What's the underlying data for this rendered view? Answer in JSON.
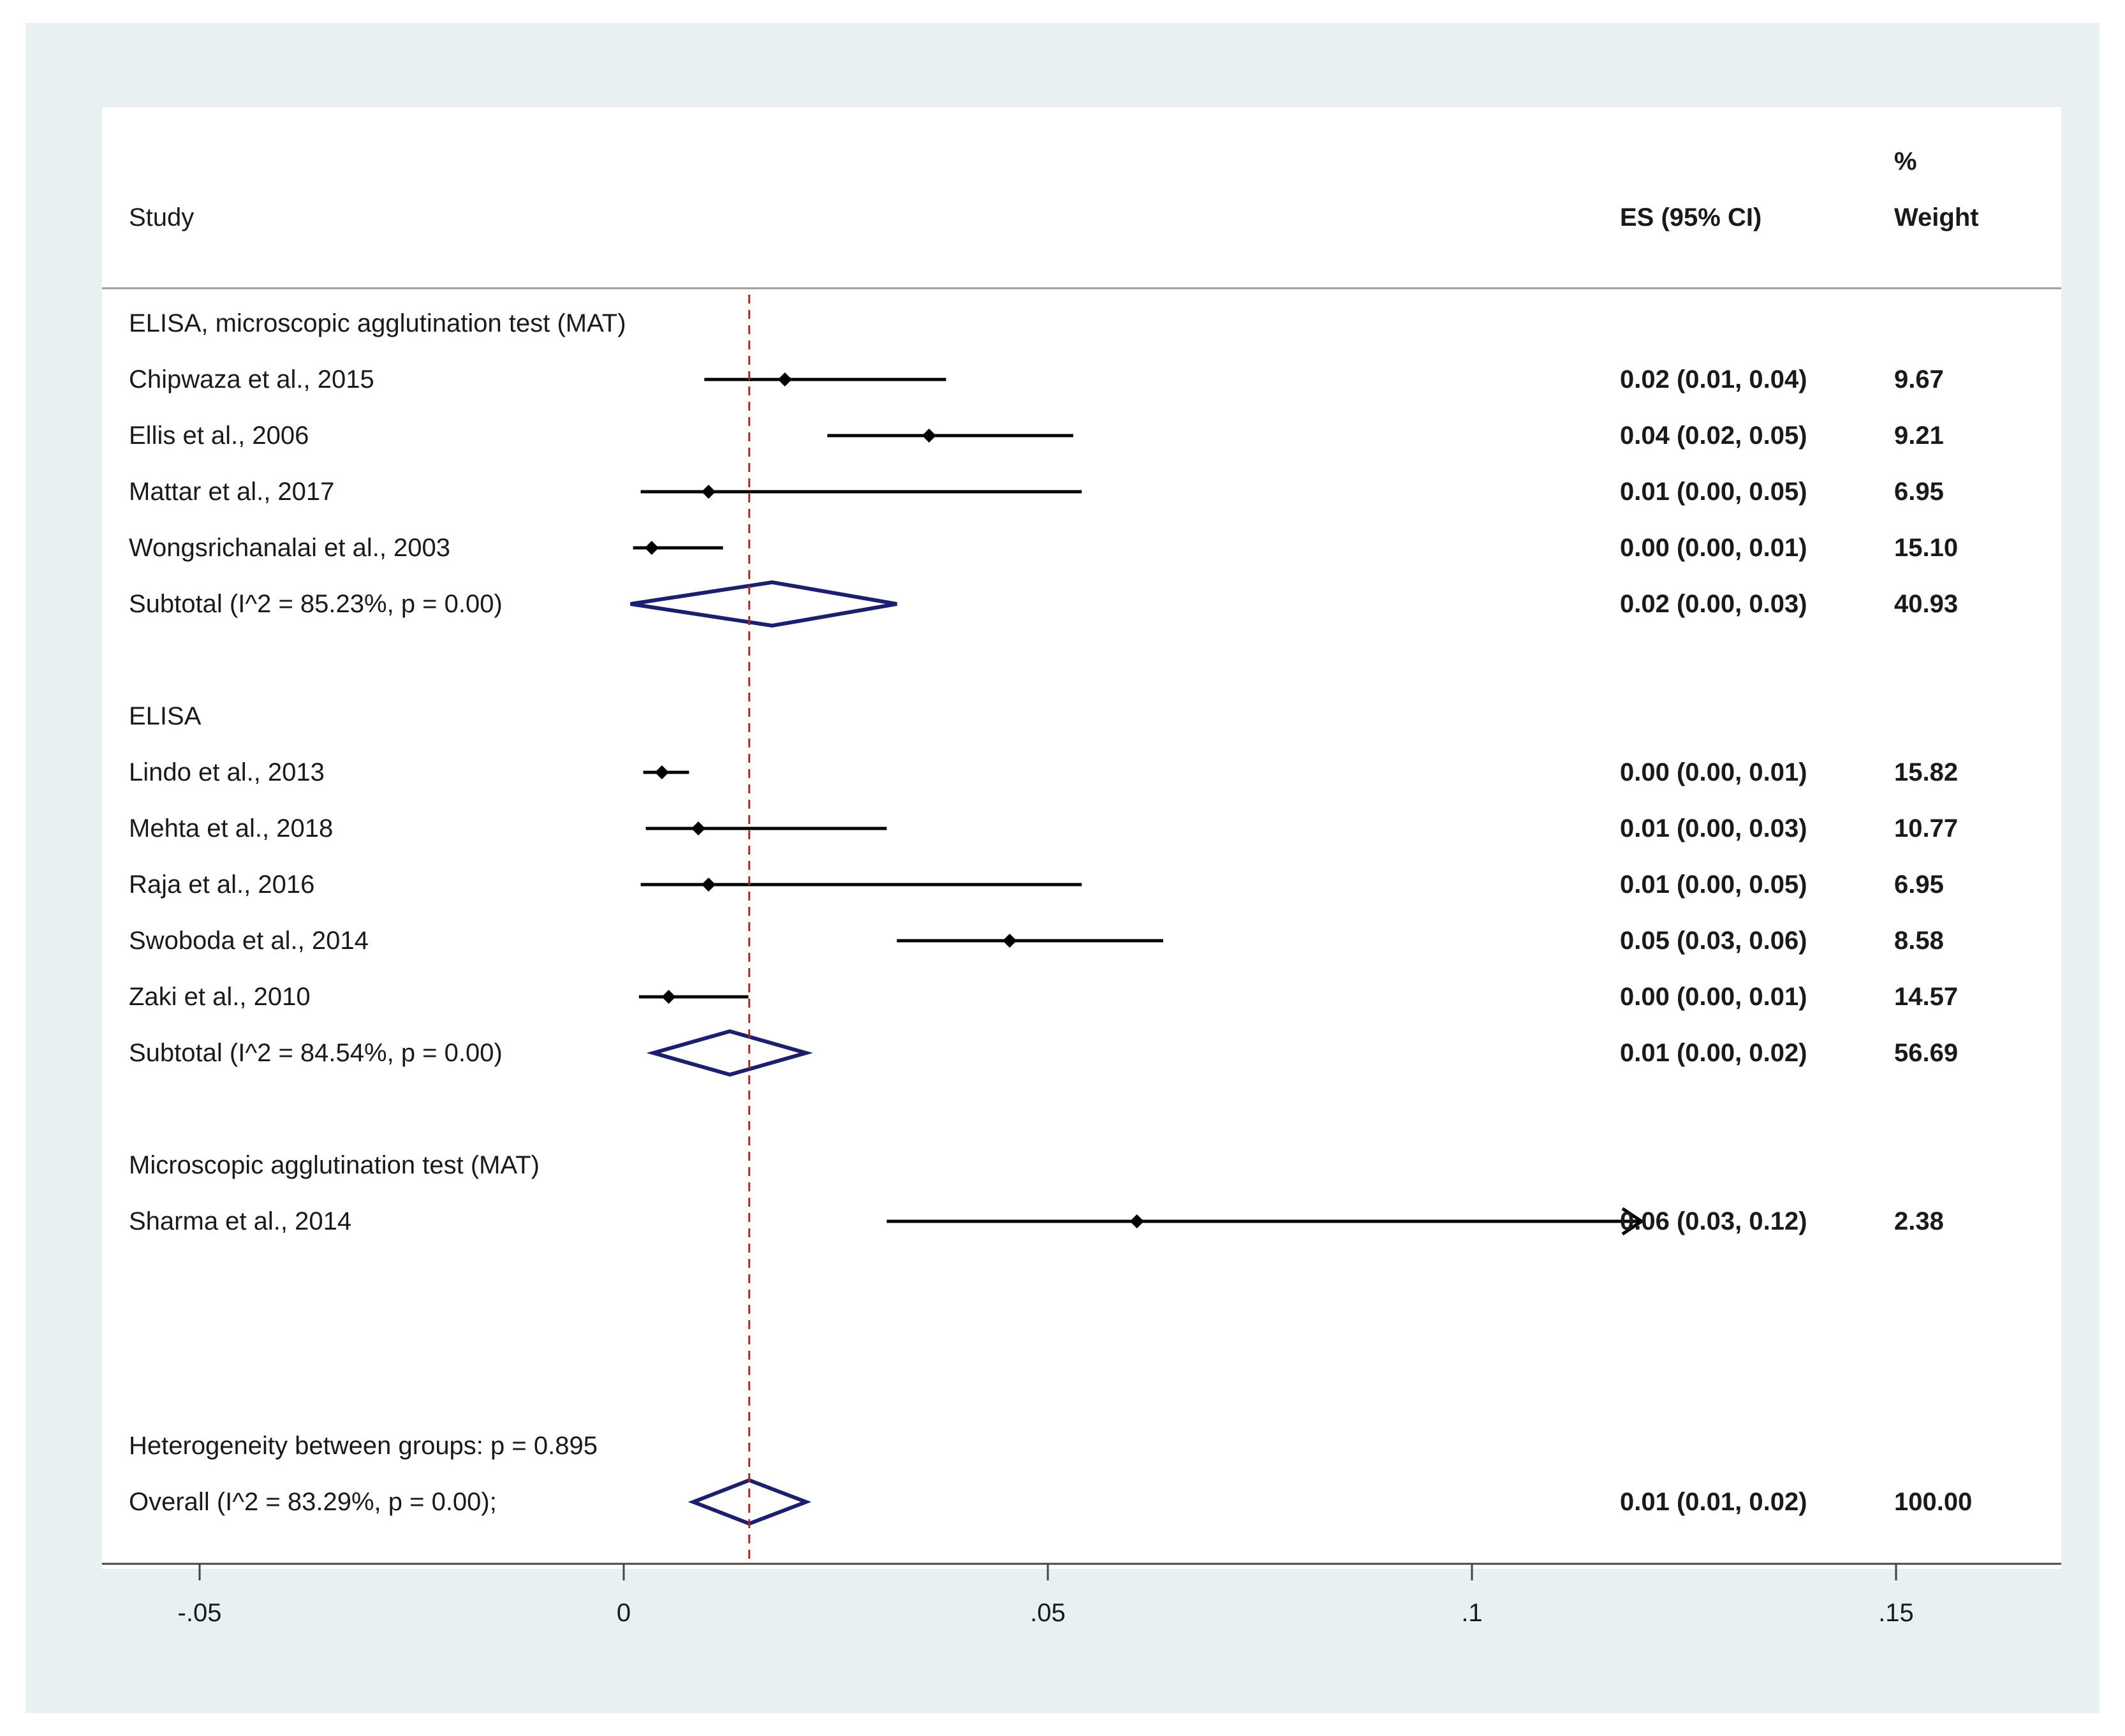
{
  "chart_data": {
    "type": "forest",
    "header": {
      "study": "Study",
      "es": "ES (95% CI)",
      "weight_top": "%",
      "weight_bottom": "Weight"
    },
    "xlim": [
      -0.06,
      0.17
    ],
    "ticks": [
      {
        "value": -0.05,
        "label": "-.05"
      },
      {
        "value": 0,
        "label": "0"
      },
      {
        "value": 0.05,
        "label": ".05"
      },
      {
        "value": 0.1,
        "label": ".1"
      },
      {
        "value": 0.15,
        "label": ".15"
      }
    ],
    "overall_line": 0.0148,
    "groups": [
      {
        "label": "ELISA, microscopic agglutination test (MAT)",
        "studies": [
          {
            "name": "Chipwaza et al., 2015",
            "es": 0.019,
            "lo": 0.0095,
            "hi": 0.038,
            "es_text": "0.02 (0.01, 0.04)",
            "weight": "9.67"
          },
          {
            "name": "Ellis et al., 2006",
            "es": 0.036,
            "lo": 0.024,
            "hi": 0.053,
            "es_text": "0.04 (0.02, 0.05)",
            "weight": "9.21"
          },
          {
            "name": "Mattar et al., 2017",
            "es": 0.01,
            "lo": 0.002,
            "hi": 0.054,
            "es_text": "0.01 (0.00, 0.05)",
            "weight": "6.95"
          },
          {
            "name": "Wongsrichanalai et al., 2003",
            "es": 0.0033,
            "lo": 0.0011,
            "hi": 0.0117,
            "es_text": "0.00 (0.00, 0.01)",
            "weight": "15.10"
          }
        ],
        "subtotal": {
          "name": "Subtotal  (I^2 = 85.23%, p = 0.00)",
          "es": 0.0175,
          "lo": 0.0008,
          "hi": 0.0322,
          "es_text": "0.02 (0.00, 0.03)",
          "weight": "40.93"
        }
      },
      {
        "label": "ELISA",
        "studies": [
          {
            "name": "Lindo et al., 2013",
            "es": 0.0045,
            "lo": 0.0023,
            "hi": 0.0077,
            "es_text": "0.00 (0.00, 0.01)",
            "weight": "15.82"
          },
          {
            "name": "Mehta et al., 2018",
            "es": 0.0088,
            "lo": 0.0026,
            "hi": 0.031,
            "es_text": "0.01 (0.00, 0.03)",
            "weight": "10.77"
          },
          {
            "name": "Raja et al., 2016",
            "es": 0.01,
            "lo": 0.002,
            "hi": 0.054,
            "es_text": "0.01 (0.00, 0.05)",
            "weight": "6.95"
          },
          {
            "name": "Swoboda et al., 2014",
            "es": 0.0455,
            "lo": 0.0322,
            "hi": 0.0636,
            "es_text": "0.05 (0.03, 0.06)",
            "weight": "8.58"
          },
          {
            "name": "Zaki et al., 2010",
            "es": 0.0053,
            "lo": 0.0018,
            "hi": 0.0147,
            "es_text": "0.00 (0.00, 0.01)",
            "weight": "14.57"
          }
        ],
        "subtotal": {
          "name": "Subtotal  (I^2 = 84.54%, p = 0.00)",
          "es": 0.0125,
          "lo": 0.0035,
          "hi": 0.0215,
          "es_text": "0.01 (0.00, 0.02)",
          "weight": "56.69"
        }
      },
      {
        "label": "Microscopic agglutination test (MAT)",
        "studies": [
          {
            "name": "Sharma et al., 2014",
            "es": 0.0605,
            "lo": 0.031,
            "hi": 0.12,
            "es_text": "0.06 (0.03, 0.12)",
            "weight": "2.38",
            "arrow": true
          }
        ]
      }
    ],
    "heterogeneity": "Heterogeneity between groups: p = 0.895",
    "overall": {
      "name": "Overall  (I^2 = 83.29%, p = 0.00);",
      "es": 0.0148,
      "lo": 0.0082,
      "hi": 0.0215,
      "es_text": "0.01 (0.01, 0.02)",
      "weight": "100.00"
    },
    "colors": {
      "line": "#000000",
      "diamond": "#1b1f6e",
      "ref_line": "#b22222",
      "axis": "#444444"
    }
  }
}
